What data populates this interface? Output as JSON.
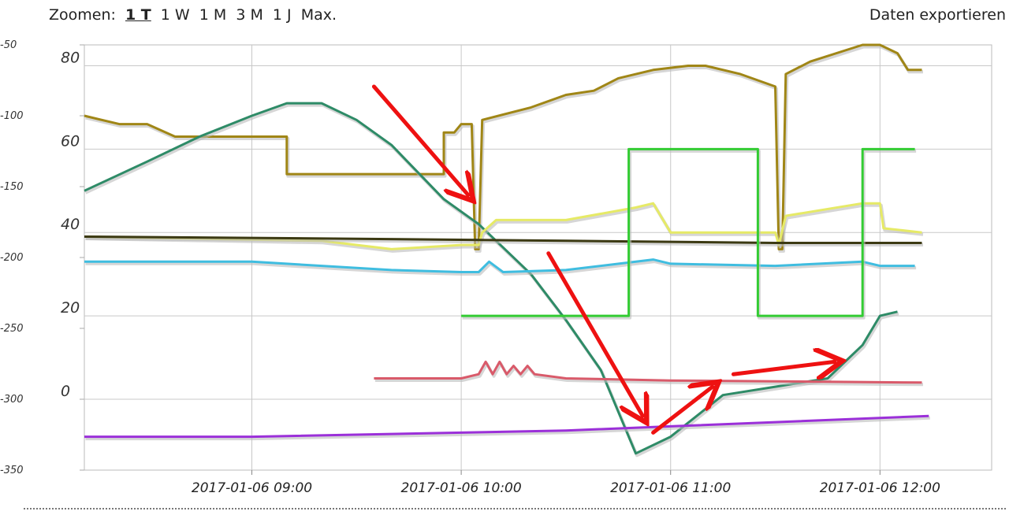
{
  "toolbar": {
    "zoom_label": "Zoomen:",
    "zoom_options": [
      "1 T",
      "1 W",
      "1 M",
      "3 M",
      "1 J",
      "Max."
    ],
    "active_zoom": "1 T",
    "export_label": "Daten exportieren"
  },
  "chart_data": {
    "type": "line",
    "title": "",
    "xlabel": "",
    "ylabel": "",
    "x_ticks": [
      "2017-01-06 09:00",
      "2017-01-06 10:00",
      "2017-01-06 11:00",
      "2017-01-06 12:00"
    ],
    "xlim": [
      "2017-01-06 08:12",
      "2017-01-06 12:32"
    ],
    "left_axis": {
      "ticks": [
        0,
        20,
        40,
        60,
        80
      ],
      "range": [
        -17,
        85
      ]
    },
    "right_axis": {
      "ticks": [
        -50,
        -100,
        -150,
        -200,
        -250,
        -300,
        -350
      ],
      "range": [
        -350,
        -50
      ]
    },
    "grid": true,
    "colors": {
      "olive": "#a08616",
      "teal": "#2e8b67",
      "yellow": "#e6ea66",
      "dark_olive": "#3c3a13",
      "cyan": "#3fbde0",
      "green": "#33cc33",
      "red": "#d95a6a",
      "purple": "#9b30d9",
      "arrow": "#ee1111"
    },
    "series": [
      {
        "color_key": "olive",
        "axis": "left",
        "points": [
          [
            "08:12",
            68
          ],
          [
            "08:22",
            66
          ],
          [
            "08:30",
            66
          ],
          [
            "08:38",
            63
          ],
          [
            "09:10",
            63
          ],
          [
            "09:10",
            54
          ],
          [
            "09:55",
            54
          ],
          [
            "09:55",
            64
          ],
          [
            "09:58",
            64
          ],
          [
            "10:00",
            66
          ],
          [
            "10:03",
            66
          ],
          [
            "10:04",
            36
          ],
          [
            "10:05",
            36
          ],
          [
            "10:06",
            67
          ],
          [
            "10:20",
            70
          ],
          [
            "10:30",
            73
          ],
          [
            "10:38",
            74
          ],
          [
            "10:45",
            77
          ],
          [
            "10:55",
            79
          ],
          [
            "11:05",
            80
          ],
          [
            "11:10",
            80
          ],
          [
            "11:20",
            78
          ],
          [
            "11:30",
            75
          ],
          [
            "11:31",
            36
          ],
          [
            "11:32",
            36
          ],
          [
            "11:33",
            78
          ],
          [
            "11:40",
            81
          ],
          [
            "11:55",
            85
          ],
          [
            "12:00",
            85
          ],
          [
            "12:05",
            83
          ],
          [
            "12:08",
            79
          ],
          [
            "12:12",
            79
          ]
        ]
      },
      {
        "color_key": "teal",
        "axis": "left",
        "points": [
          [
            "08:12",
            50
          ],
          [
            "08:30",
            57
          ],
          [
            "08:45",
            63
          ],
          [
            "09:00",
            68
          ],
          [
            "09:10",
            71
          ],
          [
            "09:20",
            71
          ],
          [
            "09:30",
            67
          ],
          [
            "09:40",
            61
          ],
          [
            "09:55",
            48
          ],
          [
            "10:05",
            42
          ],
          [
            "10:20",
            30
          ],
          [
            "10:30",
            19
          ],
          [
            "10:40",
            7
          ],
          [
            "10:50",
            -13
          ],
          [
            "11:00",
            -9
          ],
          [
            "11:15",
            1
          ],
          [
            "11:30",
            3
          ],
          [
            "11:45",
            5
          ],
          [
            "11:55",
            13
          ],
          [
            "12:00",
            20
          ],
          [
            "12:05",
            21
          ]
        ]
      },
      {
        "color_key": "yellow",
        "axis": "left",
        "points": [
          [
            "08:12",
            39
          ],
          [
            "09:20",
            38
          ],
          [
            "09:40",
            36
          ],
          [
            "10:00",
            37
          ],
          [
            "10:05",
            37
          ],
          [
            "10:06",
            40
          ],
          [
            "10:10",
            43
          ],
          [
            "10:30",
            43
          ],
          [
            "10:50",
            46
          ],
          [
            "10:55",
            47
          ],
          [
            "11:00",
            40
          ],
          [
            "11:30",
            40
          ],
          [
            "11:31",
            37
          ],
          [
            "11:33",
            44
          ],
          [
            "11:55",
            47
          ],
          [
            "12:00",
            47
          ],
          [
            "12:01",
            41
          ],
          [
            "12:12",
            40
          ]
        ]
      },
      {
        "color_key": "dark_olive",
        "axis": "left",
        "points": [
          [
            "08:12",
            39
          ],
          [
            "09:30",
            38.5
          ],
          [
            "10:30",
            38
          ],
          [
            "11:30",
            37.5
          ],
          [
            "12:12",
            37.5
          ]
        ]
      },
      {
        "color_key": "cyan",
        "axis": "left",
        "points": [
          [
            "08:12",
            33
          ],
          [
            "09:00",
            33
          ],
          [
            "09:40",
            31
          ],
          [
            "10:00",
            30.5
          ],
          [
            "10:05",
            30.5
          ],
          [
            "10:08",
            33
          ],
          [
            "10:12",
            30.5
          ],
          [
            "10:30",
            31
          ],
          [
            "10:55",
            33.5
          ],
          [
            "11:00",
            32.5
          ],
          [
            "11:30",
            32
          ],
          [
            "11:55",
            33
          ],
          [
            "12:00",
            32
          ],
          [
            "12:10",
            32
          ]
        ]
      },
      {
        "color_key": "green",
        "axis": "left",
        "points": [
          [
            "10:00",
            20
          ],
          [
            "10:48",
            20
          ],
          [
            "10:48",
            60
          ],
          [
            "11:25",
            60
          ],
          [
            "11:25",
            20
          ],
          [
            "11:55",
            20
          ],
          [
            "11:55",
            60
          ],
          [
            "12:10",
            60
          ]
        ]
      },
      {
        "color_key": "red",
        "axis": "left",
        "points": [
          [
            "09:35",
            5
          ],
          [
            "10:00",
            5
          ],
          [
            "10:05",
            6
          ],
          [
            "10:07",
            9
          ],
          [
            "10:09",
            6
          ],
          [
            "10:11",
            9
          ],
          [
            "10:13",
            6
          ],
          [
            "10:15",
            8
          ],
          [
            "10:17",
            6
          ],
          [
            "10:19",
            8
          ],
          [
            "10:21",
            6
          ],
          [
            "10:30",
            5
          ],
          [
            "11:00",
            4.5
          ],
          [
            "12:12",
            4
          ]
        ]
      },
      {
        "color_key": "purple",
        "axis": "left",
        "points": [
          [
            "08:12",
            -9
          ],
          [
            "09:00",
            -9
          ],
          [
            "10:00",
            -8
          ],
          [
            "10:30",
            -7.5
          ],
          [
            "11:00",
            -6.5
          ],
          [
            "11:30",
            -5.5
          ],
          [
            "12:14",
            -4
          ]
        ]
      }
    ],
    "annotations": [
      {
        "type": "arrow",
        "color_key": "arrow",
        "from": [
          "09:35",
          75
        ],
        "to": [
          "10:02",
          49
        ]
      },
      {
        "type": "arrow",
        "color_key": "arrow",
        "from": [
          "10:25",
          35
        ],
        "to": [
          "10:52",
          -4
        ]
      },
      {
        "type": "arrow",
        "color_key": "arrow",
        "from": [
          "10:55",
          -8
        ],
        "to": [
          "11:12",
          3
        ]
      },
      {
        "type": "arrow",
        "color_key": "arrow",
        "from": [
          "11:18",
          6
        ],
        "to": [
          "11:47",
          9
        ]
      }
    ]
  }
}
